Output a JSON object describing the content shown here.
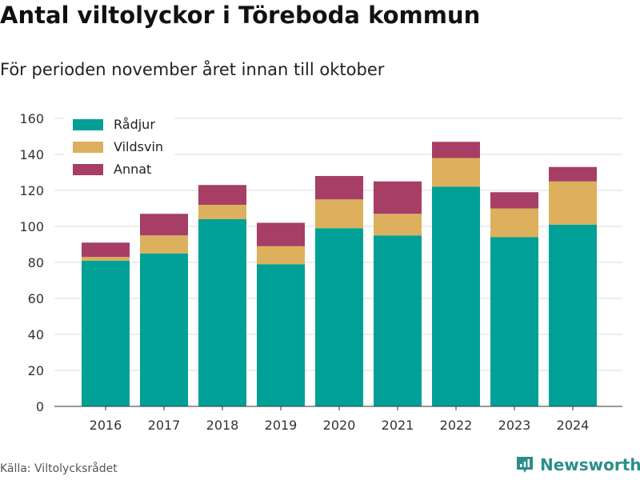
{
  "chart_data": {
    "type": "bar",
    "stacked": true,
    "title": "Antal viltolyckor i Töreboda kommun",
    "subtitle": "För perioden november året innan till oktober",
    "categories": [
      "2016",
      "2017",
      "2018",
      "2019",
      "2020",
      "2021",
      "2022",
      "2023",
      "2024"
    ],
    "series": [
      {
        "name": "Rådjur",
        "color": "#00a096",
        "values": [
          81,
          85,
          104,
          79,
          99,
          95,
          122,
          94,
          101
        ]
      },
      {
        "name": "Vildsvin",
        "color": "#dcb05c",
        "values": [
          2,
          10,
          8,
          10,
          16,
          12,
          16,
          16,
          24
        ]
      },
      {
        "name": "Annat",
        "color": "#a63e66",
        "values": [
          8,
          12,
          11,
          13,
          13,
          18,
          9,
          9,
          8
        ]
      }
    ],
    "ylim": [
      0,
      160
    ],
    "yticks": [
      0,
      20,
      40,
      60,
      80,
      100,
      120,
      140,
      160
    ],
    "grid": true,
    "legend": "top-left",
    "xlabel": "",
    "ylabel": ""
  },
  "footer": {
    "source": "Källa: Viltolycksrådet",
    "brand": "Newsworthy",
    "brand_icon": "newsworthy-logo-icon",
    "brand_color": "#2a8f8a"
  }
}
